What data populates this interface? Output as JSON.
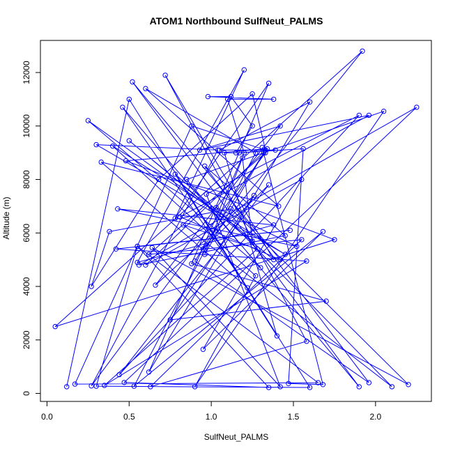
{
  "chart_data": {
    "type": "line",
    "title": "ATOM1 Northbound SulfNeut_PALMS",
    "xlabel": "SulfNeut_PALMS",
    "ylabel": "Altitude (m)",
    "xlim": [
      -0.04,
      2.34
    ],
    "ylim": [
      -300,
      13200
    ],
    "xticks": [
      0.0,
      0.5,
      1.0,
      1.5,
      2.0
    ],
    "xtick_labels": [
      "0.0",
      "0.5",
      "1.0",
      "1.5",
      "2.0"
    ],
    "yticks": [
      0,
      2000,
      4000,
      6000,
      8000,
      10000,
      12000
    ],
    "ytick_labels": [
      "0",
      "2000",
      "4000",
      "6000",
      "8000",
      "10000",
      "12000"
    ],
    "grid": false,
    "color": "#0000ff",
    "series": [
      {
        "x": [
          0.12,
          0.5,
          1.6,
          0.3,
          0.55,
          1.65,
          0.17,
          0.88,
          1.33,
          1.25,
          0.68,
          0.27,
          0.38,
          1.12,
          2.2,
          0.64,
          1.42,
          0.97,
          1.9,
          0.44,
          1.35,
          0.95,
          1.92,
          0.05,
          1.75,
          0.48,
          1.34,
          0.6,
          1.55,
          0.95,
          1.68,
          0.53,
          1.27,
          0.6,
          1.41,
          0.33,
          1.22,
          0.46,
          1.3,
          0.25,
          1.0,
          0.5,
          1.38,
          0.72,
          1.58,
          0.63,
          1.55,
          0.62,
          1.33,
          0.27,
          1.04,
          0.3,
          1.45,
          0.4,
          1.27,
          0.9,
          2.05,
          0.85,
          1.9,
          0.52,
          1.42,
          0.81,
          1.96,
          0.93,
          1.42,
          0.66,
          1.26,
          0.75,
          1.7,
          0.88,
          1.35,
          0.78,
          1.2,
          0.55,
          1.38,
          0.43,
          1.52,
          1.03,
          2.1,
          0.83,
          1.28,
          0.35,
          1.58,
          0.42,
          1.48,
          0.55,
          1.35,
          0.47,
          2.25,
          0.56,
          1.45,
          0.96,
          1.96,
          0.9,
          1.32,
          0.96,
          1.19,
          1.25,
          0.78,
          1.4,
          1.08,
          1.15,
          1.25,
          1.12,
          0.98,
          1.38,
          1.1,
          1.2,
          0.62,
          1.6,
          1.05,
          1.39,
          1.17,
          1.56,
          1.47,
          1.68,
          1.31
        ],
        "y": [
          250,
          11000,
          220,
          270,
          5500,
          400,
          350,
          10000,
          9100,
          11200,
          8000,
          4000,
          6050,
          6900,
          330,
          5450,
          250,
          7450,
          10400,
          700,
          7800,
          5400,
          12800,
          2500,
          5750,
          8700,
          9150,
          4800,
          8000,
          1650,
          6050,
          270,
          9000,
          11400,
          7000,
          8650,
          3950,
          10700,
          4700,
          10200,
          6900,
          9450,
          5000,
          11900,
          1950,
          250,
          5750,
          5200,
          9000,
          280,
          9100,
          9300,
          5200,
          9250,
          4400,
          250,
          10550,
          8000,
          250,
          11650,
          5000,
          6600,
          10400,
          9100,
          10000,
          4050,
          7400,
          2750,
          3450,
          4850,
          11600,
          6550,
          12100,
          4900,
          6300,
          6900,
          5500,
          6950,
          250,
          6300,
          5400,
          300,
          4950,
          5400,
          6100,
          5500,
          220,
          410,
          10700,
          4800,
          5900,
          8500,
          400,
          4950,
          9000,
          5200,
          8800,
          5700,
          8200,
          2150,
          9000,
          9000,
          10000,
          11100,
          11100,
          11000,
          11000,
          9000,
          800,
          10900,
          9100,
          9100,
          9000,
          9150,
          370,
          330,
          9200
        ]
      }
    ]
  }
}
